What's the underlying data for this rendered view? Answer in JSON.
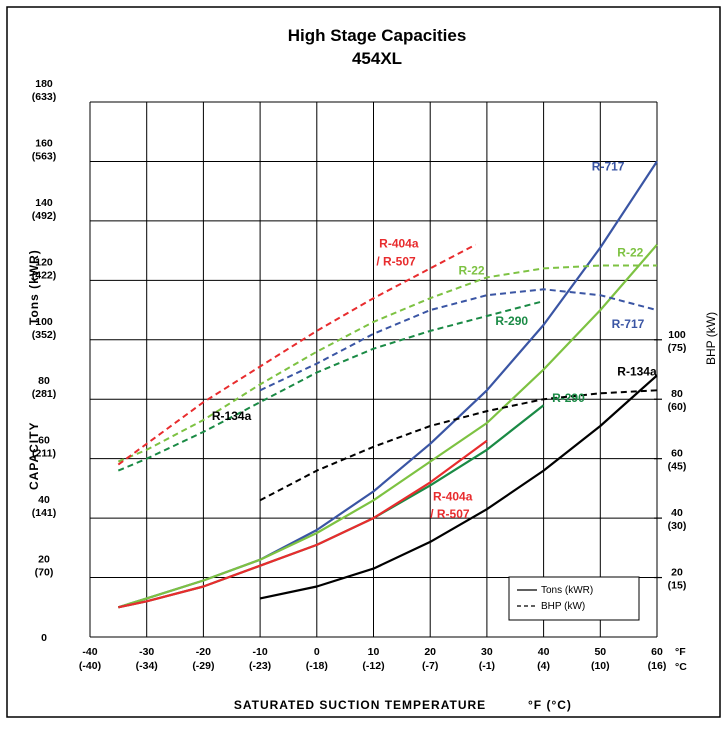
{
  "colors": {
    "R-717": "#3a55a4",
    "R-22": "#7dc242",
    "R-290": "#1a8a45",
    "R-404a": "#e82c2e",
    "R-134a": "#000000"
  },
  "chart_data": {
    "type": "line",
    "title": "High Stage Capacities",
    "subtitle": "454XL",
    "xlabel": "SATURATED SUCTION TEMPERATURE",
    "xunits": "°F (°C)",
    "ylabel_left": "CAPACITY",
    "ylabel_left_units": "Tons (kWR)",
    "ylabel_right": "BHP (kW)",
    "x_unit_f": "°F",
    "x_unit_c": "°C",
    "xlim": [
      -40,
      60
    ],
    "ylim": [
      0,
      180
    ],
    "grid": true,
    "x_ticks": [
      {
        "f": "-40",
        "c": "(-40)"
      },
      {
        "f": "-30",
        "c": "(-34)"
      },
      {
        "f": "-20",
        "c": "(-29)"
      },
      {
        "f": "-10",
        "c": "(-23)"
      },
      {
        "f": "0",
        "c": "(-18)"
      },
      {
        "f": "10",
        "c": "(-12)"
      },
      {
        "f": "20",
        "c": "(-7)"
      },
      {
        "f": "30",
        "c": "(-1)"
      },
      {
        "f": "40",
        "c": "(4)"
      },
      {
        "f": "50",
        "c": "(10)"
      },
      {
        "f": "60",
        "c": "(16)"
      }
    ],
    "y_ticks_left": [
      {
        "v": 0,
        "t": "0",
        "k": ""
      },
      {
        "v": 20,
        "t": "20",
        "k": "(70)"
      },
      {
        "v": 40,
        "t": "40",
        "k": "(141)"
      },
      {
        "v": 60,
        "t": "60",
        "k": "(211)"
      },
      {
        "v": 80,
        "t": "80",
        "k": "(281)"
      },
      {
        "v": 100,
        "t": "100",
        "k": "(352)"
      },
      {
        "v": 120,
        "t": "120",
        "k": "(422)"
      },
      {
        "v": 140,
        "t": "140",
        "k": "(492)"
      },
      {
        "v": 160,
        "t": "160",
        "k": "(563)"
      },
      {
        "v": 180,
        "t": "180",
        "k": "(633)"
      }
    ],
    "bhp_ylim": [
      0,
      180
    ],
    "y_ticks_right": [
      {
        "v": 20,
        "t": "20",
        "k": "(15)"
      },
      {
        "v": 40,
        "t": "40",
        "k": "(30)"
      },
      {
        "v": 60,
        "t": "60",
        "k": "(45)"
      },
      {
        "v": 80,
        "t": "80",
        "k": "(60)"
      },
      {
        "v": 100,
        "t": "100",
        "k": "(75)"
      }
    ],
    "legend": {
      "position": "bottom-right",
      "items": [
        {
          "label": "Tons (kWR)",
          "style": "solid"
        },
        {
          "label": "BHP (kW)",
          "style": "dashed"
        }
      ]
    },
    "series": [
      {
        "name": "R-717",
        "kind": "tons",
        "color": "#3a55a4",
        "x": [
          -35,
          -30,
          -20,
          -10,
          0,
          10,
          20,
          30,
          40,
          50,
          60
        ],
        "y": [
          10,
          13,
          19,
          26,
          36,
          49,
          65,
          83,
          105,
          131,
          160
        ]
      },
      {
        "name": "R-22",
        "kind": "tons",
        "color": "#7dc242",
        "x": [
          -35,
          -30,
          -20,
          -10,
          0,
          10,
          20,
          30,
          40,
          50,
          60
        ],
        "y": [
          10,
          13,
          19,
          26,
          35,
          46,
          59,
          72,
          90,
          110,
          132
        ]
      },
      {
        "name": "R-290",
        "kind": "tons",
        "color": "#1a8a45",
        "x": [
          -35,
          -30,
          -20,
          -10,
          0,
          10,
          20,
          30,
          40
        ],
        "y": [
          10,
          12,
          17,
          24,
          31,
          40,
          51,
          63,
          78
        ]
      },
      {
        "name": "R-404a / R-507",
        "kind": "tons",
        "color": "#e82c2e",
        "x": [
          -35,
          -30,
          -20,
          -10,
          0,
          10,
          20,
          30
        ],
        "y": [
          10,
          12,
          17,
          24,
          31,
          40,
          52,
          66
        ]
      },
      {
        "name": "R-134a",
        "kind": "tons",
        "color": "#000000",
        "x": [
          -10,
          0,
          10,
          20,
          30,
          40,
          50,
          60
        ],
        "y": [
          13,
          17,
          23,
          32,
          43,
          56,
          71,
          88
        ]
      },
      {
        "name": "R-717",
        "kind": "bhp",
        "color": "#3a55a4",
        "x": [
          -10,
          0,
          10,
          20,
          30,
          40,
          50,
          60
        ],
        "y": [
          83,
          92,
          102,
          110,
          115,
          117,
          115,
          110
        ]
      },
      {
        "name": "R-22",
        "kind": "bhp",
        "color": "#7dc242",
        "x": [
          -35,
          -30,
          -20,
          -10,
          0,
          10,
          20,
          30,
          40,
          50,
          60
        ],
        "y": [
          59,
          63,
          73,
          85,
          96,
          106,
          114,
          121,
          124,
          125,
          125
        ]
      },
      {
        "name": "R-290",
        "kind": "bhp",
        "color": "#1a8a45",
        "x": [
          -35,
          -30,
          -20,
          -10,
          0,
          10,
          20,
          30,
          40
        ],
        "y": [
          56,
          60,
          69,
          79,
          89,
          97,
          103,
          108,
          113
        ]
      },
      {
        "name": "R-404a / R-507",
        "kind": "bhp",
        "color": "#e82c2e",
        "x": [
          -35,
          -30,
          -20,
          -10,
          0,
          10,
          20,
          28
        ],
        "y": [
          58,
          65,
          79,
          91,
          103,
          114,
          124,
          132
        ]
      },
      {
        "name": "R-134a",
        "kind": "bhp",
        "color": "#000000",
        "x": [
          -10,
          0,
          10,
          20,
          30,
          40,
          50,
          60
        ],
        "y": [
          46,
          56,
          64,
          71,
          76,
          80,
          82,
          83
        ]
      }
    ],
    "annotations": [
      {
        "text": "R-717",
        "color": "#3a55a4",
        "at": [
          48.5,
          157
        ]
      },
      {
        "text": "R-717",
        "color": "#3a55a4",
        "at": [
          52,
          104
        ]
      },
      {
        "text": "R-22",
        "color": "#7dc242",
        "at": [
          53,
          128
        ]
      },
      {
        "text": "R-22",
        "color": "#7dc242",
        "at": [
          25,
          122
        ]
      },
      {
        "text": "R-290",
        "color": "#1a8a45",
        "at": [
          31.5,
          105
        ]
      },
      {
        "text": "R-290",
        "color": "#1a8a45",
        "at": [
          41.5,
          79
        ]
      },
      {
        "text": "R-404a",
        "color": "#e82c2e",
        "at": [
          11,
          131
        ]
      },
      {
        "text": "/ R-507",
        "color": "#e82c2e",
        "at": [
          10.5,
          125
        ]
      },
      {
        "text": "R-404a",
        "color": "#e82c2e",
        "at": [
          20.5,
          46
        ]
      },
      {
        "text": "/ R-507",
        "color": "#e82c2e",
        "at": [
          20,
          40
        ]
      },
      {
        "text": "R-134a",
        "color": "#000000",
        "at": [
          -18.5,
          73
        ]
      },
      {
        "text": "R-134a",
        "color": "#000000",
        "at": [
          53,
          88
        ]
      }
    ]
  }
}
